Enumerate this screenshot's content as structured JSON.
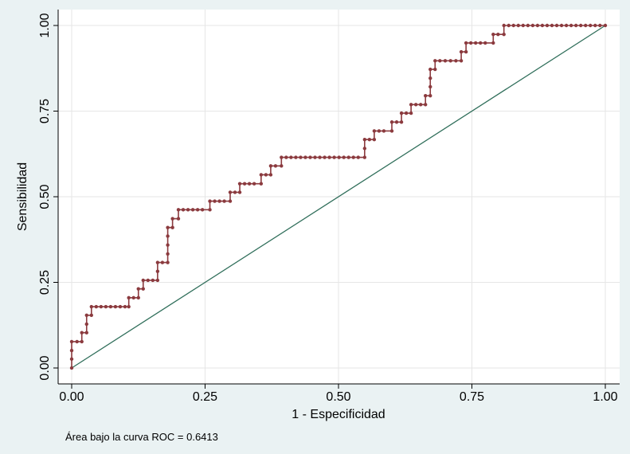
{
  "chart_data": {
    "type": "roc",
    "x_label": "1 - Especificidad",
    "y_label": "Sensibilidad",
    "note": "Área bajo la curva ROC = 0.6413",
    "xlim": [
      0,
      1
    ],
    "ylim": [
      0,
      1
    ],
    "xticks": [
      {
        "value": 0,
        "label": "0.00"
      },
      {
        "value": 0.25,
        "label": "0.25"
      },
      {
        "value": 0.5,
        "label": "0.50"
      },
      {
        "value": 0.75,
        "label": "0.75"
      },
      {
        "value": 1,
        "label": "1.00"
      }
    ],
    "yticks": [
      {
        "value": 0,
        "label": "0.00"
      },
      {
        "value": 0.25,
        "label": "0.25"
      },
      {
        "value": 0.5,
        "label": "0.50"
      },
      {
        "value": 0.75,
        "label": "0.75"
      },
      {
        "value": 1,
        "label": "1.00"
      }
    ],
    "grid": true,
    "curve": {
      "color": "#8b3a3e",
      "x": [
        0,
        0,
        0,
        0,
        0.01,
        0.019,
        0.019,
        0.028,
        0.028,
        0.028,
        0.037,
        0.037,
        0.046,
        0.055,
        0.064,
        0.073,
        0.082,
        0.091,
        0.1,
        0.107,
        0.107,
        0.116,
        0.125,
        0.125,
        0.134,
        0.134,
        0.143,
        0.152,
        0.161,
        0.161,
        0.161,
        0.17,
        0.18,
        0.18,
        0.18,
        0.18,
        0.18,
        0.189,
        0.189,
        0.2,
        0.2,
        0.209,
        0.218,
        0.227,
        0.236,
        0.245,
        0.259,
        0.259,
        0.268,
        0.277,
        0.286,
        0.297,
        0.297,
        0.306,
        0.315,
        0.315,
        0.324,
        0.333,
        0.342,
        0.355,
        0.355,
        0.364,
        0.373,
        0.373,
        0.382,
        0.393,
        0.393,
        0.402,
        0.411,
        0.42,
        0.429,
        0.438,
        0.447,
        0.456,
        0.465,
        0.474,
        0.483,
        0.492,
        0.501,
        0.51,
        0.519,
        0.528,
        0.537,
        0.549,
        0.549,
        0.549,
        0.558,
        0.567,
        0.567,
        0.576,
        0.585,
        0.6,
        0.6,
        0.609,
        0.618,
        0.618,
        0.627,
        0.636,
        0.636,
        0.645,
        0.654,
        0.663,
        0.663,
        0.672,
        0.672,
        0.672,
        0.672,
        0.681,
        0.681,
        0.69,
        0.7,
        0.71,
        0.72,
        0.73,
        0.73,
        0.739,
        0.739,
        0.748,
        0.757,
        0.766,
        0.775,
        0.79,
        0.79,
        0.799,
        0.81,
        0.81,
        0.819,
        0.828,
        0.837,
        0.846,
        0.855,
        0.864,
        0.873,
        0.882,
        0.891,
        0.9,
        0.909,
        0.918,
        0.927,
        0.936,
        0.945,
        0.954,
        0.963,
        0.972,
        0.981,
        0.99,
        1
      ],
      "y": [
        0,
        0.026,
        0.051,
        0.077,
        0.077,
        0.077,
        0.103,
        0.103,
        0.128,
        0.154,
        0.154,
        0.179,
        0.179,
        0.179,
        0.179,
        0.179,
        0.179,
        0.179,
        0.179,
        0.179,
        0.205,
        0.205,
        0.205,
        0.231,
        0.231,
        0.256,
        0.256,
        0.256,
        0.256,
        0.282,
        0.308,
        0.308,
        0.308,
        0.333,
        0.359,
        0.385,
        0.41,
        0.41,
        0.436,
        0.436,
        0.462,
        0.462,
        0.462,
        0.462,
        0.462,
        0.462,
        0.462,
        0.487,
        0.487,
        0.487,
        0.487,
        0.487,
        0.513,
        0.513,
        0.513,
        0.538,
        0.538,
        0.538,
        0.538,
        0.538,
        0.564,
        0.564,
        0.564,
        0.59,
        0.59,
        0.59,
        0.615,
        0.615,
        0.615,
        0.615,
        0.615,
        0.615,
        0.615,
        0.615,
        0.615,
        0.615,
        0.615,
        0.615,
        0.615,
        0.615,
        0.615,
        0.615,
        0.615,
        0.615,
        0.641,
        0.667,
        0.667,
        0.667,
        0.692,
        0.692,
        0.692,
        0.692,
        0.718,
        0.718,
        0.718,
        0.744,
        0.744,
        0.744,
        0.769,
        0.769,
        0.769,
        0.769,
        0.795,
        0.795,
        0.821,
        0.846,
        0.872,
        0.872,
        0.897,
        0.897,
        0.897,
        0.897,
        0.897,
        0.897,
        0.923,
        0.923,
        0.949,
        0.949,
        0.949,
        0.949,
        0.949,
        0.949,
        0.974,
        0.974,
        0.974,
        1,
        1,
        1,
        1,
        1,
        1,
        1,
        1,
        1,
        1,
        1,
        1,
        1,
        1,
        1,
        1,
        1,
        1,
        1,
        1,
        1,
        1
      ]
    },
    "reference": {
      "color": "#2f6e5a",
      "x": [
        0,
        1
      ],
      "y": [
        0,
        1
      ]
    }
  }
}
